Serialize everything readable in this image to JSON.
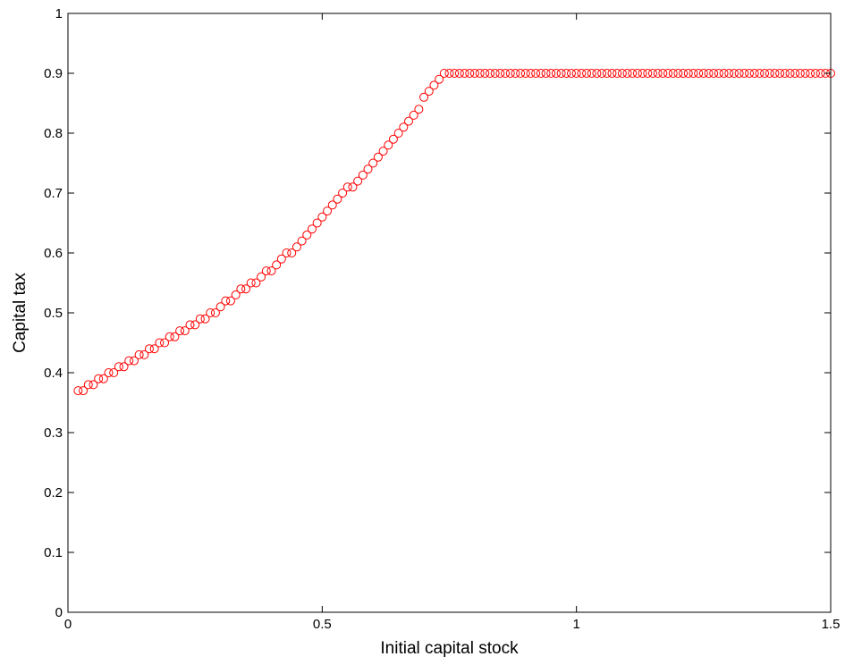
{
  "chart_data": {
    "type": "scatter",
    "title": "",
    "xlabel": "Initial capital stock",
    "ylabel": "Capital tax",
    "xlim": [
      0,
      1.5
    ],
    "ylim": [
      0,
      1
    ],
    "xticks": [
      "0",
      "0.5",
      "1",
      "1.5"
    ],
    "yticks": [
      "0",
      "0.1",
      "0.2",
      "0.3",
      "0.4",
      "0.5",
      "0.6",
      "0.7",
      "0.8",
      "0.9",
      "1"
    ],
    "grid": false,
    "marker": "circle",
    "marker_color": "#ff0000",
    "series": [
      {
        "x": [
          0.02,
          0.03,
          0.04,
          0.05,
          0.06,
          0.07,
          0.08,
          0.09,
          0.1,
          0.11,
          0.12,
          0.13,
          0.14,
          0.15,
          0.16,
          0.17,
          0.18,
          0.19,
          0.2,
          0.21,
          0.22,
          0.23,
          0.24,
          0.25,
          0.26,
          0.27,
          0.28,
          0.29,
          0.3,
          0.31,
          0.32,
          0.33,
          0.34,
          0.35,
          0.36,
          0.37,
          0.38,
          0.39,
          0.4,
          0.41,
          0.42,
          0.43,
          0.44,
          0.45,
          0.46,
          0.47,
          0.48,
          0.49,
          0.5,
          0.51,
          0.52,
          0.53,
          0.54,
          0.55,
          0.56,
          0.57,
          0.58,
          0.59,
          0.6,
          0.61,
          0.62,
          0.63,
          0.64,
          0.65,
          0.66,
          0.67,
          0.68,
          0.69,
          0.7,
          0.71,
          0.72,
          0.73,
          0.74,
          0.75,
          0.76,
          0.77,
          0.78,
          0.79,
          0.8,
          0.81,
          0.82,
          0.83,
          0.84,
          0.85,
          0.86,
          0.87,
          0.88,
          0.89,
          0.9,
          0.91,
          0.92,
          0.93,
          0.94,
          0.95,
          0.96,
          0.97,
          0.98,
          0.99,
          1.0,
          1.01,
          1.02,
          1.03,
          1.04,
          1.05,
          1.06,
          1.07,
          1.08,
          1.09,
          1.1,
          1.11,
          1.12,
          1.13,
          1.14,
          1.15,
          1.16,
          1.17,
          1.18,
          1.19,
          1.2,
          1.21,
          1.22,
          1.23,
          1.24,
          1.25,
          1.26,
          1.27,
          1.28,
          1.29,
          1.3,
          1.31,
          1.32,
          1.33,
          1.34,
          1.35,
          1.36,
          1.37,
          1.38,
          1.39,
          1.4,
          1.41,
          1.42,
          1.43,
          1.44,
          1.45,
          1.46,
          1.47,
          1.48,
          1.49,
          1.5
        ],
        "y": [
          0.37,
          0.37,
          0.38,
          0.38,
          0.39,
          0.39,
          0.4,
          0.4,
          0.41,
          0.41,
          0.42,
          0.42,
          0.43,
          0.43,
          0.44,
          0.44,
          0.45,
          0.45,
          0.46,
          0.46,
          0.47,
          0.47,
          0.48,
          0.48,
          0.49,
          0.49,
          0.5,
          0.5,
          0.51,
          0.52,
          0.52,
          0.53,
          0.54,
          0.54,
          0.55,
          0.55,
          0.56,
          0.57,
          0.57,
          0.58,
          0.59,
          0.6,
          0.6,
          0.61,
          0.62,
          0.63,
          0.64,
          0.65,
          0.66,
          0.67,
          0.68,
          0.69,
          0.7,
          0.71,
          0.71,
          0.72,
          0.73,
          0.74,
          0.75,
          0.76,
          0.77,
          0.78,
          0.79,
          0.8,
          0.81,
          0.82,
          0.83,
          0.84,
          0.86,
          0.87,
          0.88,
          0.89,
          0.9,
          0.9,
          0.9,
          0.9,
          0.9,
          0.9,
          0.9,
          0.9,
          0.9,
          0.9,
          0.9,
          0.9,
          0.9,
          0.9,
          0.9,
          0.9,
          0.9,
          0.9,
          0.9,
          0.9,
          0.9,
          0.9,
          0.9,
          0.9,
          0.9,
          0.9,
          0.9,
          0.9,
          0.9,
          0.9,
          0.9,
          0.9,
          0.9,
          0.9,
          0.9,
          0.9,
          0.9,
          0.9,
          0.9,
          0.9,
          0.9,
          0.9,
          0.9,
          0.9,
          0.9,
          0.9,
          0.9,
          0.9,
          0.9,
          0.9,
          0.9,
          0.9,
          0.9,
          0.9,
          0.9,
          0.9,
          0.9,
          0.9,
          0.9,
          0.9,
          0.9,
          0.9,
          0.9,
          0.9,
          0.9,
          0.9,
          0.9,
          0.9,
          0.9,
          0.9,
          0.9,
          0.9,
          0.9,
          0.9,
          0.9,
          0.9,
          0.9
        ]
      }
    ]
  }
}
